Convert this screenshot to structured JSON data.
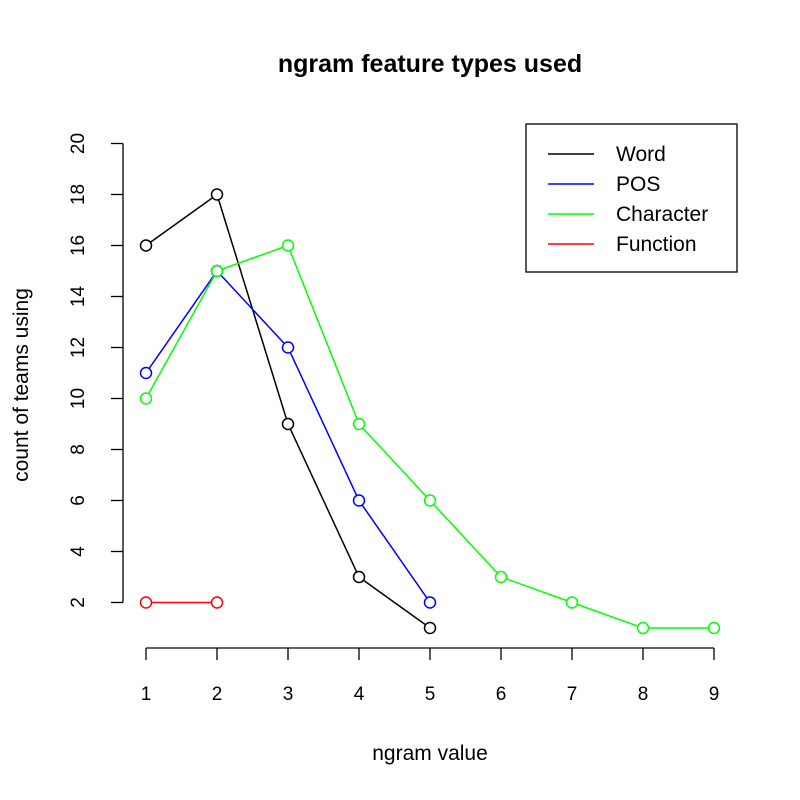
{
  "chart_data": {
    "type": "line",
    "title": "ngram feature types used",
    "xlabel": "ngram value",
    "ylabel": "count of teams using",
    "xlim": [
      1,
      9
    ],
    "ylim": [
      1,
      20
    ],
    "xticks": [
      1,
      2,
      3,
      4,
      5,
      6,
      7,
      8,
      9
    ],
    "yticks": [
      2,
      4,
      6,
      8,
      10,
      12,
      14,
      16,
      18,
      20
    ],
    "grid": false,
    "legend_position": "top-right",
    "series": [
      {
        "name": "Word",
        "color": "#000000",
        "x": [
          1,
          2,
          3,
          4,
          5
        ],
        "y": [
          16,
          18,
          9,
          3,
          1
        ]
      },
      {
        "name": "POS",
        "color": "#0000ff",
        "x": [
          1,
          2,
          3,
          4,
          5
        ],
        "y": [
          11,
          15,
          12,
          6,
          2
        ]
      },
      {
        "name": "Character",
        "color": "#00ff00",
        "x": [
          1,
          2,
          3,
          4,
          5,
          6,
          7,
          8,
          9
        ],
        "y": [
          10,
          15,
          16,
          9,
          6,
          3,
          2,
          1,
          1
        ]
      },
      {
        "name": "Function",
        "color": "#ff0000",
        "x": [
          1,
          2
        ],
        "y": [
          2,
          2
        ]
      }
    ]
  }
}
